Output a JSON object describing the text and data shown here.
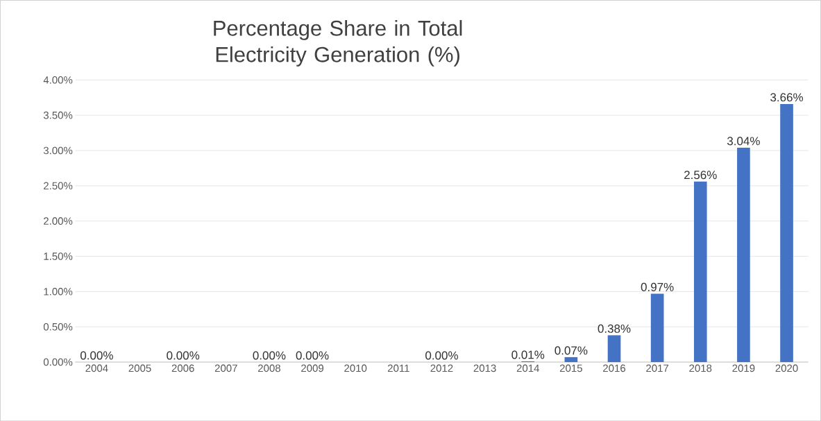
{
  "chart_data": {
    "type": "bar",
    "title": "Percentage Share in Total Electricity Generation (%)",
    "categories": [
      "2004",
      "2005",
      "2006",
      "2007",
      "2008",
      "2009",
      "2010",
      "2011",
      "2012",
      "2013",
      "2014",
      "2015",
      "2016",
      "2017",
      "2018",
      "2019",
      "2020"
    ],
    "values": [
      0,
      0,
      0,
      0,
      0,
      0,
      0,
      0,
      0,
      0,
      0.01,
      0.07,
      0.38,
      0.97,
      2.56,
      3.04,
      3.66
    ],
    "value_labels": [
      "0.00%",
      null,
      "0.00%",
      null,
      "0.00%",
      "0.00%",
      null,
      null,
      "0.00%",
      null,
      "0.01%",
      "0.07%",
      "0.38%",
      "0.97%",
      "2.56%",
      "3.04%",
      "3.66%"
    ],
    "color": "#4472c4",
    "ylim": [
      0,
      4
    ],
    "yticks": [
      {
        "value": 0,
        "label": "0.00%"
      },
      {
        "value": 0.5,
        "label": "0.50%"
      },
      {
        "value": 1,
        "label": "1.00%"
      },
      {
        "value": 1.5,
        "label": "1.50%"
      },
      {
        "value": 2,
        "label": "2.00%"
      },
      {
        "value": 2.5,
        "label": "2.50%"
      },
      {
        "value": 3,
        "label": "3.00%"
      },
      {
        "value": 3.5,
        "label": "3.50%"
      },
      {
        "value": 4,
        "label": "4.00%"
      }
    ],
    "grid": "y"
  }
}
